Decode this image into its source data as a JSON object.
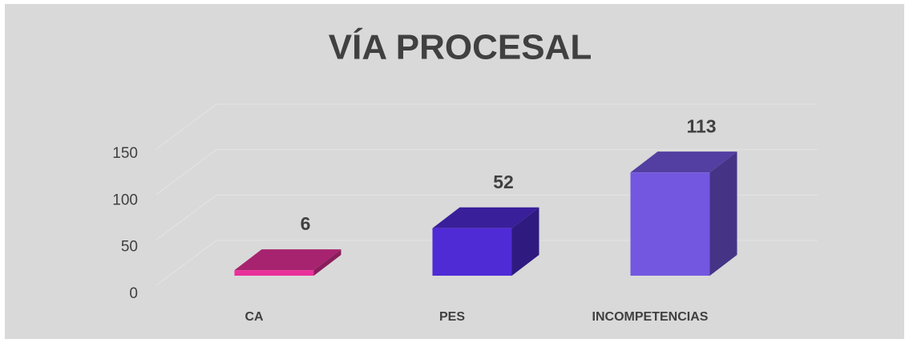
{
  "chart_data": {
    "type": "bar3d",
    "title": "VÍA PROCESAL",
    "categories": [
      "CA",
      "PES",
      "INCOMPETENCIAS"
    ],
    "values": [
      6,
      52,
      113
    ],
    "colors": [
      "#e8309a",
      "#4f2bd6",
      "#7357e0"
    ],
    "ylim": [
      0,
      150
    ],
    "yticks": [
      0,
      50,
      100,
      150
    ],
    "grid": true
  }
}
